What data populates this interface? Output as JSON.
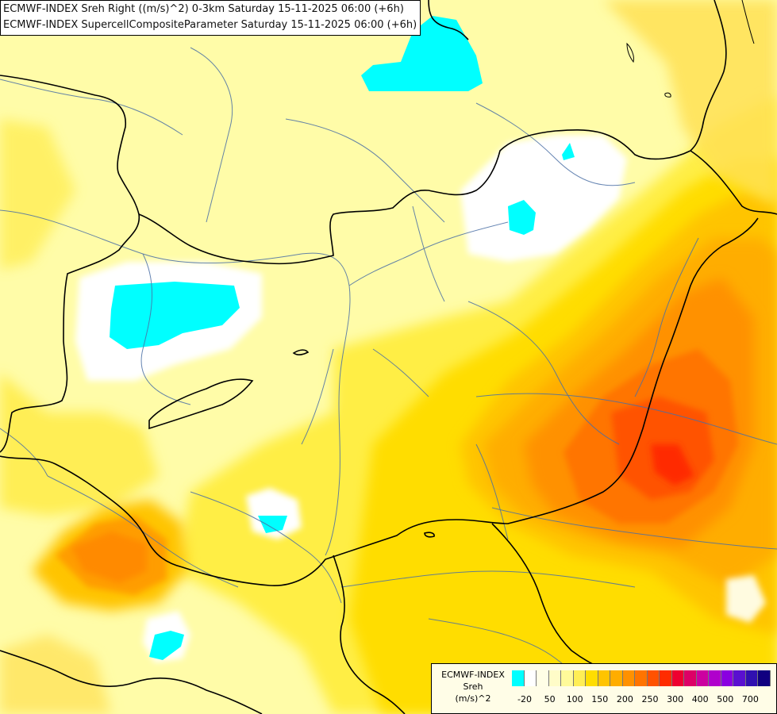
{
  "titles": {
    "line1": "ECMWF-INDEX Sreh Right ((m/s)^2) 0-3km Saturday 15-11-2025 06:00 (+6h)",
    "line2": "ECMWF-INDEX SupercellCompositeParameter Saturday 15-11-2025 06:00 (+6h)"
  },
  "legend": {
    "source": "ECMWF-INDEX",
    "parameter": "Sreh",
    "unit": "(m/s)^2",
    "colors": [
      "#00ffff",
      "#ffffff",
      "#fffee6",
      "#fffcc8",
      "#fffa9a",
      "#ffee55",
      "#ffdd00",
      "#ffc400",
      "#ffad00",
      "#ff9100",
      "#ff7400",
      "#ff5200",
      "#ff2c00",
      "#ee0030",
      "#dd0066",
      "#cc00a0",
      "#b000cc",
      "#8a00e0",
      "#5a10d0",
      "#3010b0",
      "#100080"
    ],
    "ticks": [
      "-20",
      "50",
      "100",
      "150",
      "200",
      "250",
      "300",
      "400",
      "500",
      "700"
    ]
  }
}
